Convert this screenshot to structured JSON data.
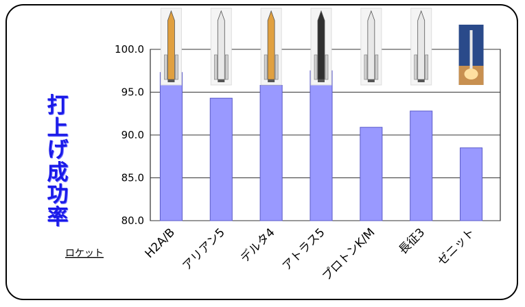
{
  "chart_data": {
    "type": "bar",
    "ylabel": "打上げ成功率",
    "xlabel": "ロケット",
    "categories": [
      "H2A/B",
      "アリアン5",
      "デルタ4",
      "アトラス5",
      "プロトンK/M",
      "長征3",
      "ゼニット"
    ],
    "values": [
      97.3,
      94.3,
      95.8,
      97.5,
      90.9,
      92.8,
      88.5
    ],
    "ylim": [
      80,
      100
    ],
    "yticks": [
      "80.0",
      "85.0",
      "90.0",
      "95.0",
      "100.0"
    ],
    "grid": true,
    "legend": "none"
  },
  "rocket_icons": [
    "h2a-rocket-icon",
    "ariane5-rocket-icon",
    "delta4-rocket-icon",
    "atlas5-rocket-icon",
    "proton-rocket-icon",
    "long-march3-rocket-icon",
    "zenit-rocket-icon"
  ],
  "colors": {
    "bar_fill": "#9999ff",
    "bar_stroke": "#5a5ac8",
    "grid": "#333333",
    "plot_bg": "#ffffff",
    "ylabel": "#1a1ae8"
  }
}
